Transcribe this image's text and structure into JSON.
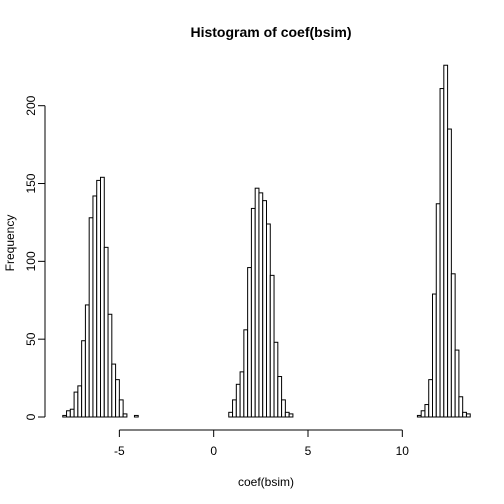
{
  "chart_data": {
    "type": "bar",
    "title": "Histogram of coef(bsim)",
    "xlabel": "coef(bsim)",
    "ylabel": "Frequency",
    "xlim": [
      -8.2,
      13.8
    ],
    "ylim": [
      0,
      230
    ],
    "xticks": [
      -5,
      0,
      5,
      10
    ],
    "yticks": [
      0,
      50,
      100,
      150,
      200
    ],
    "bin_width": 0.2,
    "bins": [
      {
        "start": -8.0,
        "value": 1
      },
      {
        "start": -7.8,
        "value": 4
      },
      {
        "start": -7.6,
        "value": 5
      },
      {
        "start": -7.4,
        "value": 16
      },
      {
        "start": -7.2,
        "value": 20
      },
      {
        "start": -7.0,
        "value": 49
      },
      {
        "start": -6.8,
        "value": 72
      },
      {
        "start": -6.6,
        "value": 128
      },
      {
        "start": -6.4,
        "value": 142
      },
      {
        "start": -6.2,
        "value": 152
      },
      {
        "start": -6.0,
        "value": 154
      },
      {
        "start": -5.8,
        "value": 109
      },
      {
        "start": -5.6,
        "value": 66
      },
      {
        "start": -5.4,
        "value": 34
      },
      {
        "start": -5.2,
        "value": 24
      },
      {
        "start": -5.0,
        "value": 11
      },
      {
        "start": -4.8,
        "value": 2
      },
      {
        "start": -4.6,
        "value": 0
      },
      {
        "start": -4.4,
        "value": 0
      },
      {
        "start": -4.2,
        "value": 1
      },
      {
        "start": 0.6,
        "value": 0
      },
      {
        "start": 0.8,
        "value": 3
      },
      {
        "start": 1.0,
        "value": 11
      },
      {
        "start": 1.2,
        "value": 21
      },
      {
        "start": 1.4,
        "value": 29
      },
      {
        "start": 1.6,
        "value": 56
      },
      {
        "start": 1.8,
        "value": 96
      },
      {
        "start": 2.0,
        "value": 134
      },
      {
        "start": 2.2,
        "value": 147
      },
      {
        "start": 2.4,
        "value": 144
      },
      {
        "start": 2.6,
        "value": 139
      },
      {
        "start": 2.8,
        "value": 124
      },
      {
        "start": 3.0,
        "value": 91
      },
      {
        "start": 3.2,
        "value": 48
      },
      {
        "start": 3.4,
        "value": 26
      },
      {
        "start": 3.6,
        "value": 11
      },
      {
        "start": 3.8,
        "value": 3
      },
      {
        "start": 4.0,
        "value": 2
      },
      {
        "start": 10.8,
        "value": 1
      },
      {
        "start": 11.0,
        "value": 4
      },
      {
        "start": 11.2,
        "value": 8
      },
      {
        "start": 11.4,
        "value": 24
      },
      {
        "start": 11.6,
        "value": 79
      },
      {
        "start": 11.8,
        "value": 137
      },
      {
        "start": 12.0,
        "value": 211
      },
      {
        "start": 12.2,
        "value": 226
      },
      {
        "start": 12.4,
        "value": 185
      },
      {
        "start": 12.6,
        "value": 92
      },
      {
        "start": 12.8,
        "value": 43
      },
      {
        "start": 13.0,
        "value": 13
      },
      {
        "start": 13.2,
        "value": 3
      },
      {
        "start": 13.4,
        "value": 2
      }
    ]
  }
}
